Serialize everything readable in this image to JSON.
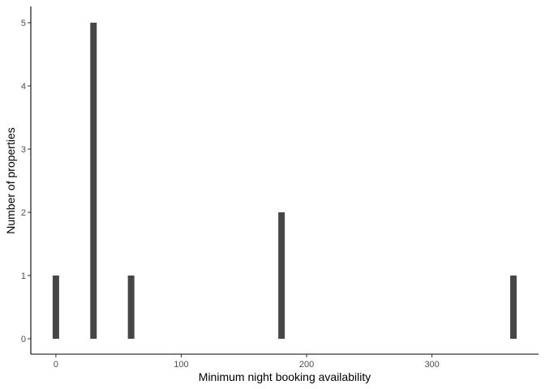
{
  "chart_data": {
    "type": "bar",
    "title": "",
    "xlabel": "Minimum night booking availability",
    "ylabel": "Number of properties",
    "x": [
      0,
      30,
      60,
      180,
      365
    ],
    "values": [
      1,
      5,
      1,
      2,
      1
    ],
    "xlim": [
      -20,
      385
    ],
    "ylim": [
      0,
      5
    ],
    "x_ticks": [
      0,
      100,
      200,
      300
    ],
    "y_ticks": [
      0,
      1,
      2,
      3,
      4,
      5
    ],
    "bar_color": "#464646",
    "grid": false,
    "legend": "none"
  }
}
